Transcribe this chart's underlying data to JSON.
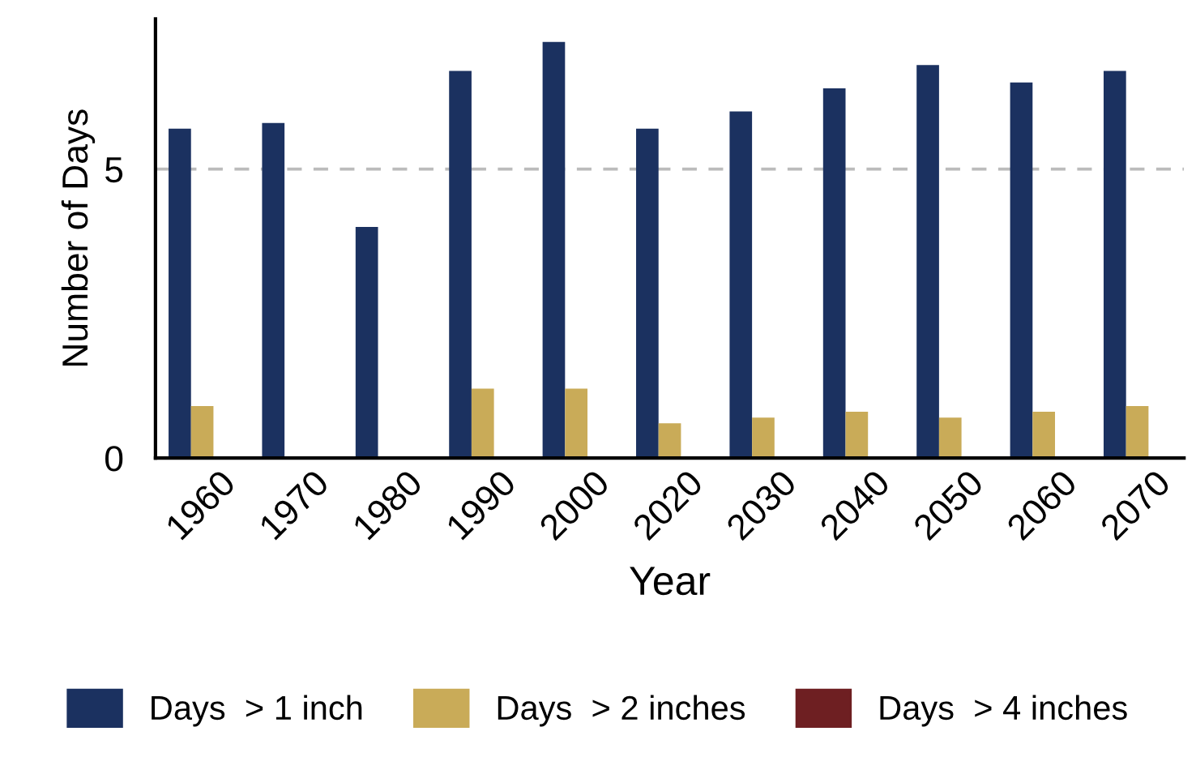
{
  "chart_data": {
    "type": "bar",
    "xlabel": "Year",
    "ylabel": "Number of Days",
    "categories": [
      "1960",
      "1970",
      "1980",
      "1990",
      "2000",
      "2020",
      "2030",
      "2040",
      "2050",
      "2060",
      "2070"
    ],
    "series": [
      {
        "name": "Days  > 1 inch",
        "color": "#1b3160",
        "values": [
          5.7,
          5.8,
          4.0,
          6.7,
          7.2,
          5.7,
          6.0,
          6.4,
          6.8,
          6.5,
          6.7
        ]
      },
      {
        "name": "Days  > 2 inches",
        "color": "#c9ab58",
        "values": [
          0.9,
          0,
          0,
          1.2,
          1.2,
          0.6,
          0.7,
          0.8,
          0.7,
          0.8,
          0.9
        ]
      },
      {
        "name": "Days  > 4 inches",
        "color": "#6e1f22",
        "values": [
          0,
          0,
          0,
          0,
          0,
          0,
          0,
          0,
          0,
          0,
          0
        ]
      }
    ],
    "ylim": [
      0,
      7.6
    ],
    "yticks": [
      0,
      5
    ],
    "ref_lines": [
      {
        "axis": "y",
        "value": 5,
        "color": "#bbbbbb",
        "line_style": "dashed"
      }
    ],
    "grid": false,
    "legend": "bottom"
  }
}
